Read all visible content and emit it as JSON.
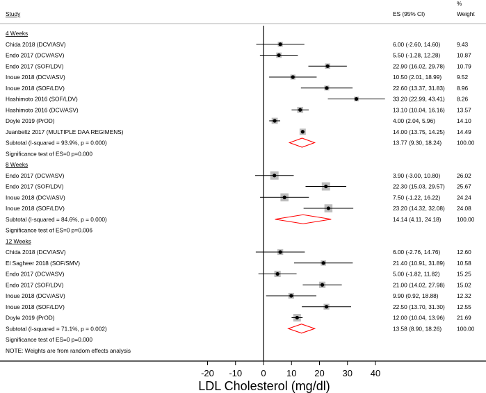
{
  "chart_data": {
    "type": "forest",
    "xlabel": "LDL Cholesterol (mg/dl)",
    "xlim": [
      -20,
      40
    ],
    "xticks": [
      -20,
      -10,
      0,
      10,
      20,
      30,
      40
    ],
    "headers": {
      "study": "Study",
      "es": "ES (95% CI)",
      "weight_line1": "%",
      "weight_line2": "Weight"
    },
    "colors": {
      "box": "#bdbdbd",
      "diamond": "#ff0000",
      "line": "#000000",
      "separator": "#cccccc"
    },
    "groups": [
      {
        "label": "4 Weeks",
        "studies": [
          {
            "name": "Chida 2018 (DCV/ASV)",
            "es": 6.0,
            "lo": -2.6,
            "hi": 14.6,
            "es_text": "6.00 (-2.60, 14.60)",
            "weight": "9.43"
          },
          {
            "name": "Endo 2017 (DCV/ASV)",
            "es": 5.5,
            "lo": -1.28,
            "hi": 12.28,
            "es_text": "5.50 (-1.28, 12.28)",
            "weight": "10.87"
          },
          {
            "name": "Endo 2017 (SOF/LDV)",
            "es": 22.9,
            "lo": 16.02,
            "hi": 29.78,
            "es_text": "22.90 (16.02, 29.78)",
            "weight": "10.79"
          },
          {
            "name": "Inoue 2018 (DCV/ASV)",
            "es": 10.5,
            "lo": 2.01,
            "hi": 18.99,
            "es_text": "10.50 (2.01, 18.99)",
            "weight": "9.52"
          },
          {
            "name": "Inoue 2018 (SOF/LDV)",
            "es": 22.6,
            "lo": 13.37,
            "hi": 31.83,
            "es_text": "22.60 (13.37, 31.83)",
            "weight": "8.96"
          },
          {
            "name": "Hashimoto 2016 (SOF/LDV)",
            "es": 33.2,
            "lo": 22.99,
            "hi": 43.41,
            "es_text": "33.20 (22.99, 43.41)",
            "weight": "8.26"
          },
          {
            "name": "Hashimoto 2016 (DCV/ASV)",
            "es": 13.1,
            "lo": 10.04,
            "hi": 16.16,
            "es_text": "13.10 (10.04, 16.16)",
            "weight": "13.57"
          },
          {
            "name": "Doyle 2019 (PrOD)",
            "es": 4.0,
            "lo": 2.04,
            "hi": 5.96,
            "es_text": "4.00 (2.04, 5.96)",
            "weight": "14.10"
          },
          {
            "name": "Juanbeltz 2017 (MULTIPLE DAA REGIMENS)",
            "es": 14.0,
            "lo": 13.75,
            "hi": 14.25,
            "es_text": "14.00 (13.75, 14.25)",
            "weight": "14.49"
          }
        ],
        "subtotal": {
          "label": "Subtotal  (I-squared = 93.9%, p = 0.000)",
          "es": 13.77,
          "lo": 9.3,
          "hi": 18.24,
          "es_text": "13.77 (9.30, 18.24)",
          "weight": "100.00"
        },
        "significance": "Significance test of ES=0 p=0.000"
      },
      {
        "label": "8 Weeks",
        "studies": [
          {
            "name": "Endo 2017 (DCV/ASV)",
            "es": 3.9,
            "lo": -3.0,
            "hi": 10.8,
            "es_text": "3.90 (-3.00, 10.80)",
            "weight": "26.02"
          },
          {
            "name": "Endo 2017 (SOF/LDV)",
            "es": 22.3,
            "lo": 15.03,
            "hi": 29.57,
            "es_text": "22.30 (15.03, 29.57)",
            "weight": "25.67"
          },
          {
            "name": "Inoue 2018 (DCV/ASV)",
            "es": 7.5,
            "lo": -1.22,
            "hi": 16.22,
            "es_text": "7.50 (-1.22, 16.22)",
            "weight": "24.24"
          },
          {
            "name": "Inoue 2018 (SOF/LDV)",
            "es": 23.2,
            "lo": 14.32,
            "hi": 32.08,
            "es_text": "23.20 (14.32, 32.08)",
            "weight": "24.08"
          }
        ],
        "subtotal": {
          "label": "Subtotal  (I-squared = 84.6%, p = 0.000)",
          "es": 14.14,
          "lo": 4.11,
          "hi": 24.18,
          "es_text": "14.14 (4.11, 24.18)",
          "weight": "100.00"
        },
        "significance": "Significance test of ES=0 p=0.006"
      },
      {
        "label": "12 Weeks",
        "studies": [
          {
            "name": "Chida 2018 (DCV/ASV)",
            "es": 6.0,
            "lo": -2.76,
            "hi": 14.76,
            "es_text": "6.00 (-2.76, 14.76)",
            "weight": "12.60"
          },
          {
            "name": "El Sagheer 2018 (SOF/SMV)",
            "es": 21.4,
            "lo": 10.91,
            "hi": 31.89,
            "es_text": "21.40 (10.91, 31.89)",
            "weight": "10.58"
          },
          {
            "name": "Endo 2017 (DCV/ASV)",
            "es": 5.0,
            "lo": -1.82,
            "hi": 11.82,
            "es_text": "5.00 (-1.82, 11.82)",
            "weight": "15.25"
          },
          {
            "name": "Endo 2017 (SOF/LDV)",
            "es": 21.0,
            "lo": 14.02,
            "hi": 27.98,
            "es_text": "21.00 (14.02, 27.98)",
            "weight": "15.02"
          },
          {
            "name": "Inoue 2018 (DCV/ASV)",
            "es": 9.9,
            "lo": 0.92,
            "hi": 18.88,
            "es_text": "9.90 (0.92, 18.88)",
            "weight": "12.32"
          },
          {
            "name": "Inoue 2018 (SOF/LDV)",
            "es": 22.5,
            "lo": 13.7,
            "hi": 31.3,
            "es_text": "22.50 (13.70, 31.30)",
            "weight": "12.55"
          },
          {
            "name": "Doyle 2019 (PrOD)",
            "es": 12.0,
            "lo": 10.04,
            "hi": 13.96,
            "es_text": "12.00 (10.04, 13.96)",
            "weight": "21.69"
          }
        ],
        "subtotal": {
          "label": "Subtotal  (I-squared = 71.1%, p = 0.002)",
          "es": 13.58,
          "lo": 8.9,
          "hi": 18.26,
          "es_text": "13.58 (8.90, 18.26)",
          "weight": "100.00"
        },
        "significance": "Significance test of ES=0 p=0.000"
      }
    ],
    "note": "NOTE: Weights are from random effects analysis"
  }
}
